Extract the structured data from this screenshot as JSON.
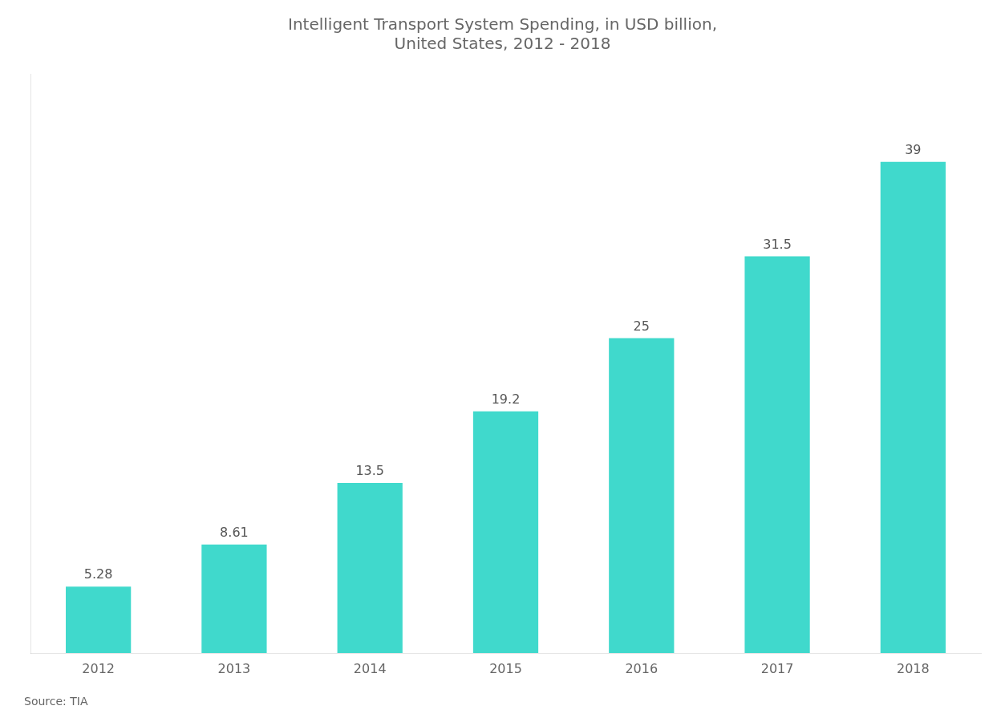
{
  "chart_data": {
    "type": "bar",
    "title": "Intelligent Transport System Spending, in USD billion,\nUnited States, 2012 - 2018",
    "categories": [
      "2012",
      "2013",
      "2014",
      "2015",
      "2016",
      "2017",
      "2018"
    ],
    "values": [
      5.28,
      8.61,
      13.5,
      19.2,
      25,
      31.5,
      39
    ],
    "color": "#40D9CC",
    "ylim": [
      0,
      46
    ],
    "grid": false,
    "data_labels": true,
    "tick_labels": "x",
    "annotations": [
      "Source: TIA"
    ]
  }
}
